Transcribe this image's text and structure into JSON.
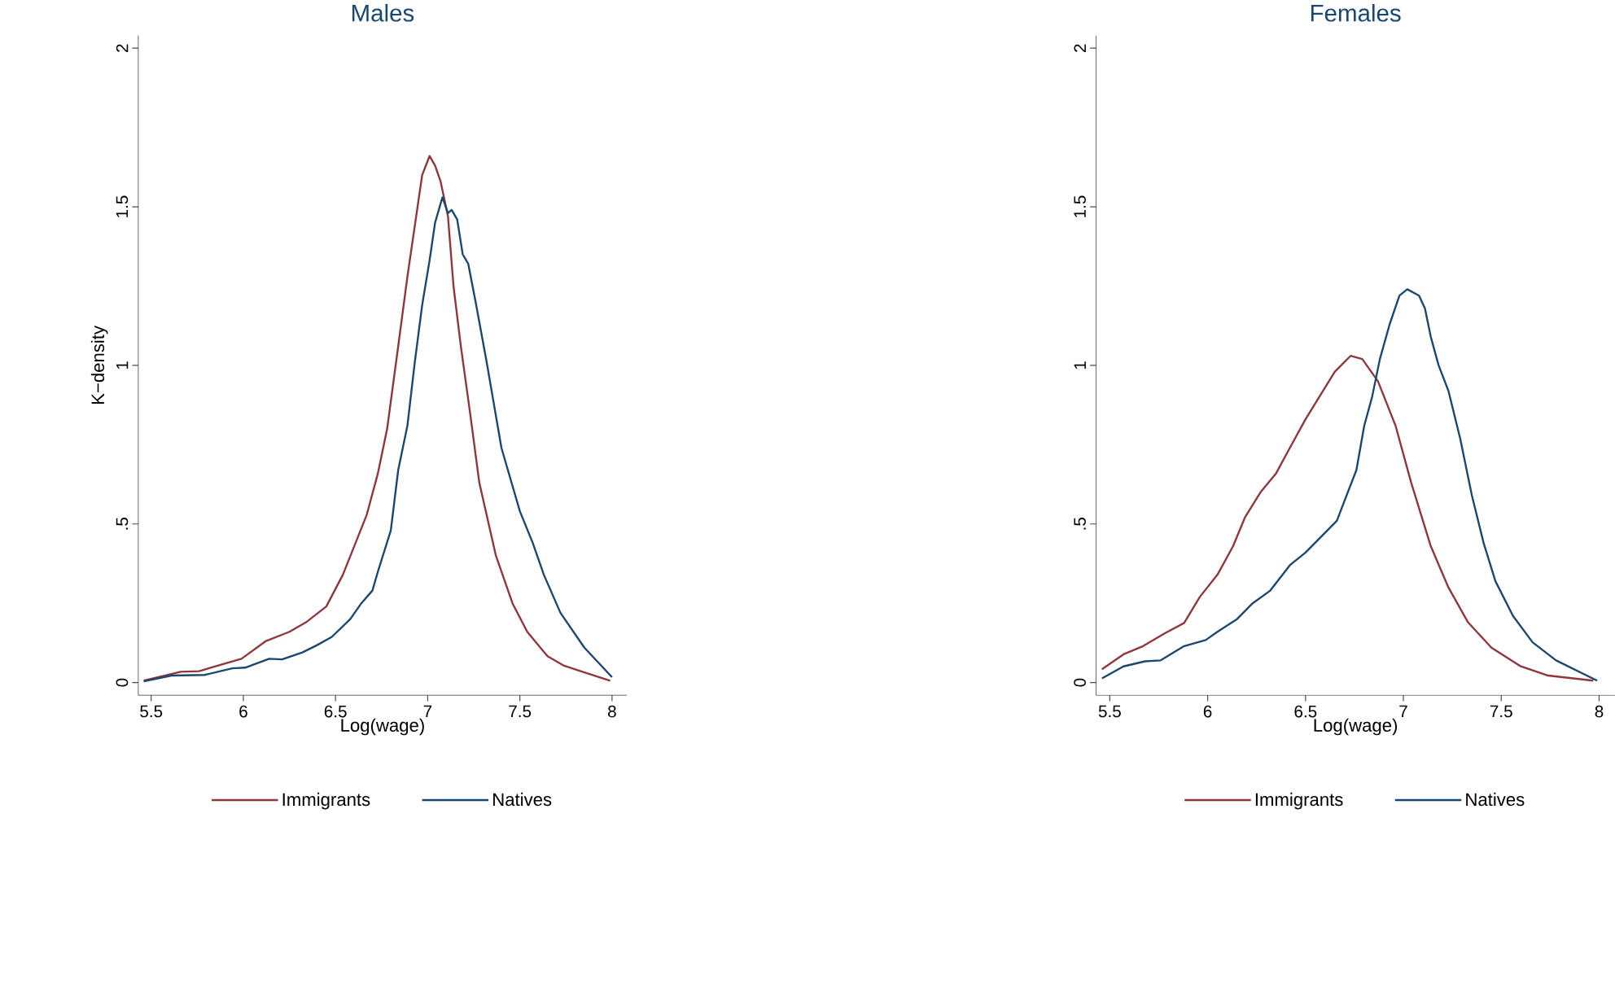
{
  "chart_data": [
    {
      "type": "line",
      "title": "Males",
      "xlabel": "Log(wage)",
      "ylabel": "K−density",
      "xlim": [
        5.43,
        8.08
      ],
      "ylim": [
        -0.04,
        2.04
      ],
      "xticks": [
        5.5,
        6,
        6.5,
        7,
        7.5,
        8
      ],
      "yticks": [
        0,
        {
          "value": 0.5,
          "label": ".5"
        },
        1,
        1.5,
        2
      ],
      "legend": "bottom",
      "grid": false,
      "marker": "none",
      "line_style": "solid",
      "series": [
        {
          "name": "Immigrants",
          "color": "#90353b",
          "x": [
            5.46,
            5.66,
            5.76,
            5.99,
            6.12,
            6.25,
            6.34,
            6.45,
            6.54,
            6.67,
            6.73,
            6.78,
            6.84,
            6.89,
            6.93,
            6.97,
            7.01,
            7.04,
            7.07,
            7.11,
            7.14,
            7.18,
            7.23,
            7.28,
            7.37,
            7.46,
            7.54,
            7.65,
            7.74,
            7.85,
            7.99
          ],
          "values": [
            0.006,
            0.034,
            0.036,
            0.075,
            0.13,
            0.16,
            0.19,
            0.24,
            0.34,
            0.53,
            0.66,
            0.8,
            1.06,
            1.28,
            1.44,
            1.6,
            1.66,
            1.63,
            1.58,
            1.47,
            1.25,
            1.06,
            0.85,
            0.63,
            0.4,
            0.25,
            0.16,
            0.083,
            0.053,
            0.032,
            0.006
          ]
        },
        {
          "name": "Natives",
          "color": "#1a476f",
          "x": [
            5.46,
            5.61,
            5.79,
            5.94,
            6.01,
            6.14,
            6.21,
            6.32,
            6.4,
            6.48,
            6.58,
            6.64,
            6.7,
            6.73,
            6.8,
            6.84,
            6.89,
            6.93,
            6.97,
            7.01,
            7.04,
            7.08,
            7.11,
            7.13,
            7.16,
            7.19,
            7.22,
            7.26,
            7.32,
            7.4,
            7.5,
            7.57,
            7.63,
            7.72,
            7.85,
            8.0
          ],
          "values": [
            0.004,
            0.022,
            0.024,
            0.045,
            0.047,
            0.075,
            0.073,
            0.095,
            0.118,
            0.144,
            0.2,
            0.25,
            0.29,
            0.35,
            0.48,
            0.67,
            0.81,
            1.01,
            1.19,
            1.33,
            1.45,
            1.53,
            1.48,
            1.49,
            1.46,
            1.35,
            1.32,
            1.2,
            1.01,
            0.74,
            0.54,
            0.44,
            0.34,
            0.22,
            0.11,
            0.017
          ]
        }
      ]
    },
    {
      "type": "line",
      "title": "Females",
      "xlabel": "Log(wage)",
      "xlim": [
        5.43,
        8.08
      ],
      "ylim": [
        -0.04,
        2.04
      ],
      "xticks": [
        5.5,
        6,
        6.5,
        7,
        7.5,
        8
      ],
      "yticks": [
        0,
        {
          "value": 0.5,
          "label": ".5"
        },
        1,
        1.5,
        2
      ],
      "legend": "bottom",
      "grid": false,
      "marker": "none",
      "line_style": "solid",
      "series": [
        {
          "name": "Immigrants",
          "color": "#90353b",
          "x": [
            5.46,
            5.57,
            5.67,
            5.78,
            5.88,
            5.96,
            6.05,
            6.13,
            6.19,
            6.27,
            6.35,
            6.42,
            6.5,
            6.58,
            6.65,
            6.73,
            6.79,
            6.87,
            6.96,
            7.04,
            7.14,
            7.23,
            7.33,
            7.45,
            7.6,
            7.74,
            7.97
          ],
          "values": [
            0.042,
            0.089,
            0.115,
            0.155,
            0.188,
            0.27,
            0.34,
            0.43,
            0.52,
            0.6,
            0.66,
            0.74,
            0.83,
            0.91,
            0.98,
            1.03,
            1.02,
            0.95,
            0.81,
            0.63,
            0.43,
            0.3,
            0.19,
            0.11,
            0.051,
            0.022,
            0.006
          ]
        },
        {
          "name": "Natives",
          "color": "#1a476f",
          "x": [
            5.46,
            5.57,
            5.68,
            5.76,
            5.88,
            5.99,
            6.05,
            6.15,
            6.23,
            6.32,
            6.42,
            6.5,
            6.58,
            6.66,
            6.71,
            6.76,
            6.8,
            6.84,
            6.88,
            6.93,
            6.98,
            7.02,
            7.08,
            7.11,
            7.14,
            7.18,
            7.23,
            7.29,
            7.35,
            7.41,
            7.47,
            7.56,
            7.66,
            7.78,
            7.99
          ],
          "values": [
            0.013,
            0.051,
            0.067,
            0.07,
            0.115,
            0.134,
            0.16,
            0.2,
            0.25,
            0.29,
            0.37,
            0.41,
            0.46,
            0.51,
            0.59,
            0.67,
            0.81,
            0.9,
            1.02,
            1.13,
            1.22,
            1.24,
            1.22,
            1.18,
            1.09,
            1.0,
            0.92,
            0.77,
            0.59,
            0.44,
            0.32,
            0.21,
            0.127,
            0.07,
            0.006
          ]
        }
      ]
    }
  ]
}
